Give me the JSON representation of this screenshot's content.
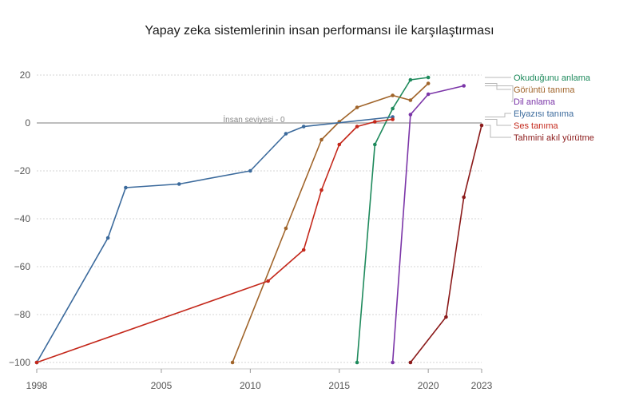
{
  "chart_data": {
    "type": "line",
    "title": "Yapay zeka sistemlerinin insan performansı ile karşılaştırması",
    "xlabel": "",
    "ylabel": "",
    "xlim": [
      1998,
      2023
    ],
    "ylim": [
      -100,
      20
    ],
    "x_ticks": [
      1998,
      2005,
      2010,
      2015,
      2020,
      2023
    ],
    "y_ticks": [
      20,
      0,
      -20,
      -40,
      -60,
      -80,
      -100
    ],
    "grid": true,
    "reference_line": {
      "y": 0,
      "label": "İnsan seviyesi - 0"
    },
    "series": [
      {
        "name": "Okuduğunu anlama",
        "color": "#1e8a5c",
        "points": [
          [
            2016,
            -100
          ],
          [
            2017,
            -9
          ],
          [
            2018,
            6
          ],
          [
            2019,
            18
          ],
          [
            2020,
            19
          ]
        ]
      },
      {
        "name": "Görüntü tanıma",
        "color": "#a0642a",
        "points": [
          [
            2009,
            -100
          ],
          [
            2012,
            -44
          ],
          [
            2014,
            -7
          ],
          [
            2015,
            0.5
          ],
          [
            2016,
            6.5
          ],
          [
            2018,
            11.5
          ],
          [
            2019,
            9.5
          ],
          [
            2020,
            16.5
          ]
        ]
      },
      {
        "name": "Dil anlama",
        "color": "#7b35a8",
        "points": [
          [
            2018,
            -100
          ],
          [
            2019,
            3.5
          ],
          [
            2020,
            12
          ],
          [
            2022,
            15.5
          ]
        ]
      },
      {
        "name": "Elyazısı tanıma",
        "color": "#3b6a9c",
        "points": [
          [
            1998,
            -100
          ],
          [
            2002,
            -48
          ],
          [
            2003,
            -27
          ],
          [
            2006,
            -25.5
          ],
          [
            2010,
            -20
          ],
          [
            2012,
            -4.5
          ],
          [
            2013,
            -1.5
          ],
          [
            2018,
            2.5
          ]
        ]
      },
      {
        "name": "Ses tanıma",
        "color": "#c4281b",
        "points": [
          [
            1998,
            -100
          ],
          [
            2011,
            -66
          ],
          [
            2013,
            -53
          ],
          [
            2014,
            -28
          ],
          [
            2015,
            -9
          ],
          [
            2016,
            -1.5
          ],
          [
            2017,
            0.5
          ],
          [
            2018,
            1.5
          ]
        ]
      },
      {
        "name": "Tahmini akıl yürütme",
        "color": "#8b1a1a",
        "points": [
          [
            2019,
            -100
          ],
          [
            2021,
            -81
          ],
          [
            2022,
            -31
          ],
          [
            2023,
            -1
          ]
        ]
      }
    ]
  }
}
